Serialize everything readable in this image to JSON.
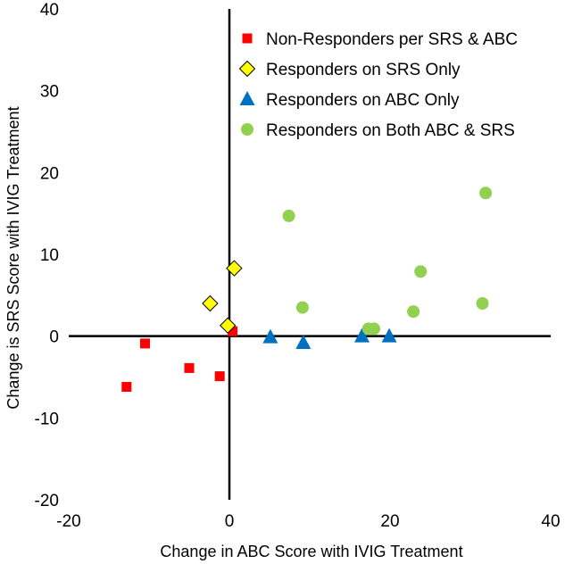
{
  "chart_data": {
    "type": "scatter",
    "title": "",
    "xlabel": "Change in ABC Score with IVIG Treatment",
    "ylabel": "Change is SRS Score with IVIG Treatment",
    "xlim": [
      -20,
      40
    ],
    "ylim": [
      -20,
      40
    ],
    "xticks": [
      "-20",
      "0",
      "20",
      "40"
    ],
    "yticks": [
      "40",
      "30",
      "20",
      "10",
      "0",
      "-10",
      "-20"
    ],
    "grid": false,
    "legend_position": "top-right",
    "series": [
      {
        "name": "Non-Responders per SRS & ABC",
        "marker": "square",
        "color": "#ff0000",
        "points": [
          [
            -12.8,
            -6.2
          ],
          [
            -10.5,
            -0.9
          ],
          [
            -5.0,
            -3.9
          ],
          [
            -1.2,
            -4.9
          ],
          [
            0.4,
            0.6
          ]
        ]
      },
      {
        "name": "Responders on SRS Only",
        "marker": "diamond",
        "color": "#ffff00",
        "points": [
          [
            -2.4,
            4.0
          ],
          [
            -0.2,
            1.3
          ],
          [
            0.6,
            8.3
          ]
        ]
      },
      {
        "name": "Responders on ABC Only",
        "marker": "triangle",
        "color": "#0070c0",
        "points": [
          [
            5.1,
            -0.1
          ],
          [
            9.2,
            -0.8
          ],
          [
            16.5,
            0.0
          ],
          [
            19.9,
            0.0
          ]
        ]
      },
      {
        "name": "Responders on Both ABC & SRS",
        "marker": "circle",
        "color": "#92d050",
        "points": [
          [
            7.4,
            14.7
          ],
          [
            9.1,
            3.5
          ],
          [
            17.3,
            0.9
          ],
          [
            18.0,
            0.9
          ],
          [
            22.9,
            3.0
          ],
          [
            23.8,
            7.9
          ],
          [
            31.5,
            4.0
          ],
          [
            31.9,
            17.5
          ]
        ]
      }
    ]
  }
}
